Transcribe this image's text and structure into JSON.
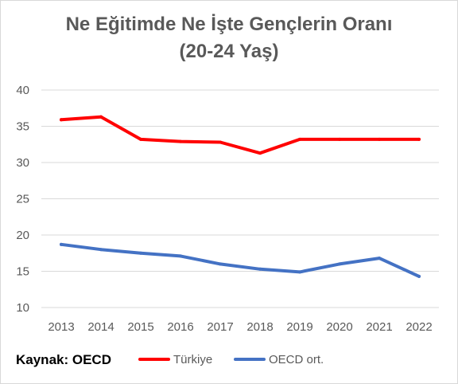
{
  "chart_data": {
    "type": "line",
    "title_line1": "Ne Eğitimde Ne İşte Gençlerin Oranı",
    "title_line2": "(20-24 Yaş)",
    "x": [
      "2013",
      "2014",
      "2015",
      "2016",
      "2017",
      "2018",
      "2019",
      "2020",
      "2021",
      "2022"
    ],
    "yticks": [
      "10",
      "15",
      "20",
      "25",
      "30",
      "35",
      "40"
    ],
    "ylim": [
      10,
      40
    ],
    "grid": true,
    "legend_position": "bottom",
    "series": [
      {
        "name": "Türkiye",
        "color": "#ff0000",
        "values": [
          35.9,
          36.3,
          33.2,
          32.9,
          32.8,
          31.3,
          33.2,
          33.2,
          33.2,
          33.2
        ]
      },
      {
        "name": "OECD ort.",
        "color": "#4472c4",
        "values": [
          18.7,
          18.0,
          17.5,
          17.1,
          16.0,
          15.3,
          14.9,
          16.0,
          16.8,
          14.3
        ]
      }
    ]
  },
  "source_label": "Kaynak: OECD"
}
